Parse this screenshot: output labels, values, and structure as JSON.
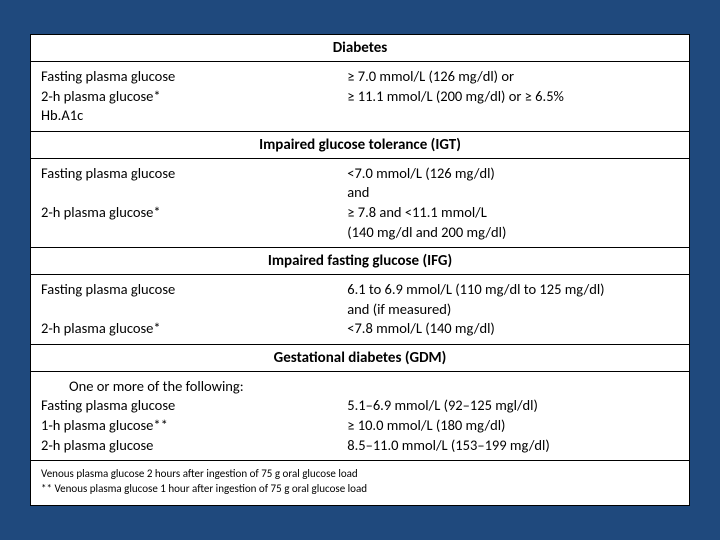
{
  "background_color": "#1f497d",
  "table_bg": "#ffffff",
  "border_color": "#000000",
  "fonts": {
    "body_family": "Calibri, Arial, sans-serif",
    "body_size": 14.5,
    "header_size": 15,
    "footnote_size": 11
  },
  "sections": {
    "diabetes": {
      "title": "Diabetes",
      "left": {
        "l1": "Fasting plasma glucose",
        "l2": "2-h plasma glucose*",
        "l3": "Hb.A1c"
      },
      "right": {
        "r1": "≥ 7.0 mmol/L (126 mg/dl)     or",
        "r2": "≥ 11.1 mmol/L (200 mg/dl)  or ≥ 6.5%"
      }
    },
    "igt": {
      "title": "Impaired glucose tolerance (IGT)",
      "left": {
        "l1": "Fasting plasma glucose",
        "l2": "2-h plasma glucose*"
      },
      "right": {
        "r1": "<7.0 mmol/L (126 mg/dl)",
        "r2": "and",
        "r3": "≥ 7.8 and <11.1 mmol/L",
        "r4": "(140 mg/dl and 200 mg/dl)"
      }
    },
    "ifg": {
      "title": "Impaired fasting glucose (IFG)",
      "left": {
        "l1": "Fasting plasma glucose",
        "l2": "2-h plasma glucose*"
      },
      "right": {
        "r1": "6.1 to 6.9 mmol/L (110 mg/dl to 125 mg/dl)",
        "r2": " and (if measured)",
        "r3": "<7.8 mmol/L (140 mg/dl)"
      }
    },
    "gdm": {
      "title": "Gestational diabetes (GDM)",
      "note": "One or more of the following:",
      "left": {
        "l1": "Fasting plasma glucose",
        "l2": "1-h plasma glucose**",
        "l3": "2-h plasma glucose"
      },
      "right": {
        "r1": "5.1–6.9 mmol/L (92–125 mgl/dl)",
        "r2": "≥ 10.0 mmol/L (180 mg/dl)",
        "r3": "8.5–11.0 mmol/L (153–199 mg/dl)"
      }
    }
  },
  "footnotes": {
    "f1": "Venous plasma glucose 2 hours after ingestion of 75 g oral glucose load",
    "f2": "** Venous plasma glucose 1 hour after ingestion of 75 g oral glucose load"
  }
}
